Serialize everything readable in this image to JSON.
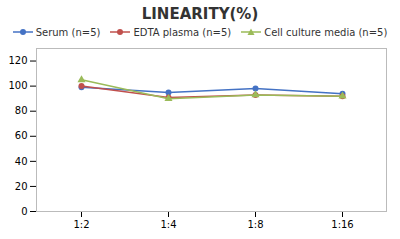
{
  "chart_data": {
    "type": "line",
    "title": "LINEARITY(%)",
    "categories": [
      "1:2",
      "1:4",
      "1:8",
      "1:16"
    ],
    "series": [
      {
        "name": "Serum (n=5)",
        "color": "#4472C4",
        "marker": "circle",
        "values": [
          99,
          95,
          98,
          94
        ]
      },
      {
        "name": "EDTA plasma (n=5)",
        "color": "#C0504D",
        "marker": "circle",
        "values": [
          100,
          91,
          93,
          92
        ]
      },
      {
        "name": "Cell culture media (n=5)",
        "color": "#9BBB59",
        "marker": "triangle",
        "values": [
          105,
          90,
          93,
          92
        ]
      }
    ],
    "ylim": [
      0,
      130
    ],
    "yticks": [
      0,
      20,
      40,
      60,
      80,
      100,
      120
    ],
    "grid": false,
    "legend": "top"
  }
}
